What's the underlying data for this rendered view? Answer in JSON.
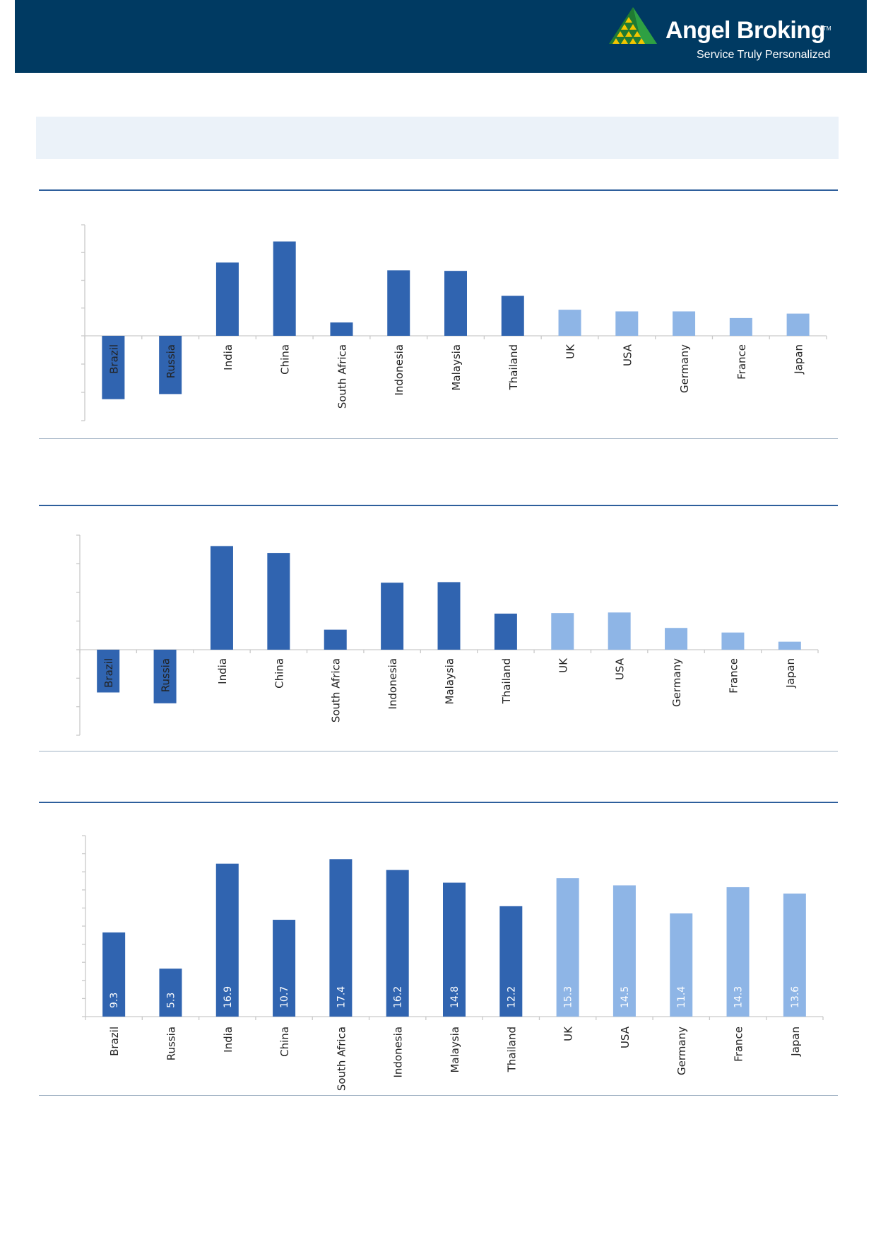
{
  "header": {
    "brand_name": "Angel Broking",
    "trademark": "TM",
    "tagline": "Service Truly Personalized",
    "logo_icon": "pyramid-triangle-logo-icon",
    "background_color": "#003a62"
  },
  "colors": {
    "emerging_bar": "#3064b0",
    "developed_bar": "#8eb5e6",
    "accent_rule": "#2e5f9c",
    "banner_fill": "#ebf2f9"
  },
  "chart_data": [
    {
      "type": "bar",
      "title": "",
      "xlabel": "",
      "ylabel": "",
      "categories": [
        "Brazil",
        "Russia",
        "India",
        "China",
        "South Africa",
        "Indonesia",
        "Malaysia",
        "Thailand",
        "UK",
        "USA",
        "Germany",
        "France",
        "Japan"
      ],
      "groups": [
        "emerging",
        "emerging",
        "emerging",
        "emerging",
        "emerging",
        "emerging",
        "emerging",
        "emerging",
        "developed",
        "developed",
        "developed",
        "developed",
        "developed"
      ],
      "values": [
        -11.2,
        -10.3,
        13.2,
        17.0,
        2.4,
        11.8,
        11.7,
        7.2,
        4.7,
        4.4,
        4.4,
        3.2,
        4.0
      ],
      "ylim": [
        -15,
        20
      ],
      "ytick_step": 5,
      "data_labels": false,
      "grid": false
    },
    {
      "type": "bar",
      "title": "",
      "xlabel": "",
      "ylabel": "",
      "categories": [
        "Brazil",
        "Russia",
        "India",
        "China",
        "South Africa",
        "Indonesia",
        "Malaysia",
        "Thailand",
        "UK",
        "USA",
        "Germany",
        "France",
        "Japan"
      ],
      "groups": [
        "emerging",
        "emerging",
        "emerging",
        "emerging",
        "emerging",
        "emerging",
        "emerging",
        "emerging",
        "developed",
        "developed",
        "developed",
        "developed",
        "developed"
      ],
      "values": [
        -7.5,
        -9.4,
        18.1,
        16.9,
        3.5,
        11.7,
        11.8,
        6.3,
        6.4,
        6.5,
        3.8,
        3.0,
        1.4
      ],
      "ylim": [
        -15,
        20
      ],
      "ytick_step": 5,
      "data_labels": false,
      "grid": false
    },
    {
      "type": "bar",
      "title": "",
      "xlabel": "",
      "ylabel": "",
      "categories": [
        "Brazil",
        "Russia",
        "India",
        "China",
        "South Africa",
        "Indonesia",
        "Malaysia",
        "Thailand",
        "UK",
        "USA",
        "Germany",
        "France",
        "Japan"
      ],
      "groups": [
        "emerging",
        "emerging",
        "emerging",
        "emerging",
        "emerging",
        "emerging",
        "emerging",
        "emerging",
        "developed",
        "developed",
        "developed",
        "developed",
        "developed"
      ],
      "values": [
        9.3,
        5.3,
        16.9,
        10.7,
        17.4,
        16.2,
        14.8,
        12.2,
        15.3,
        14.5,
        11.4,
        14.3,
        13.6
      ],
      "labels": [
        "9.3",
        "5.3",
        "16.9",
        "10.7",
        "17.4",
        "16.2",
        "14.8",
        "12.2",
        "15.3",
        "14.5",
        "11.4",
        "14.3",
        "13.6"
      ],
      "ylim": [
        0,
        20
      ],
      "ytick_step": 2,
      "data_labels": true,
      "grid": false
    }
  ]
}
